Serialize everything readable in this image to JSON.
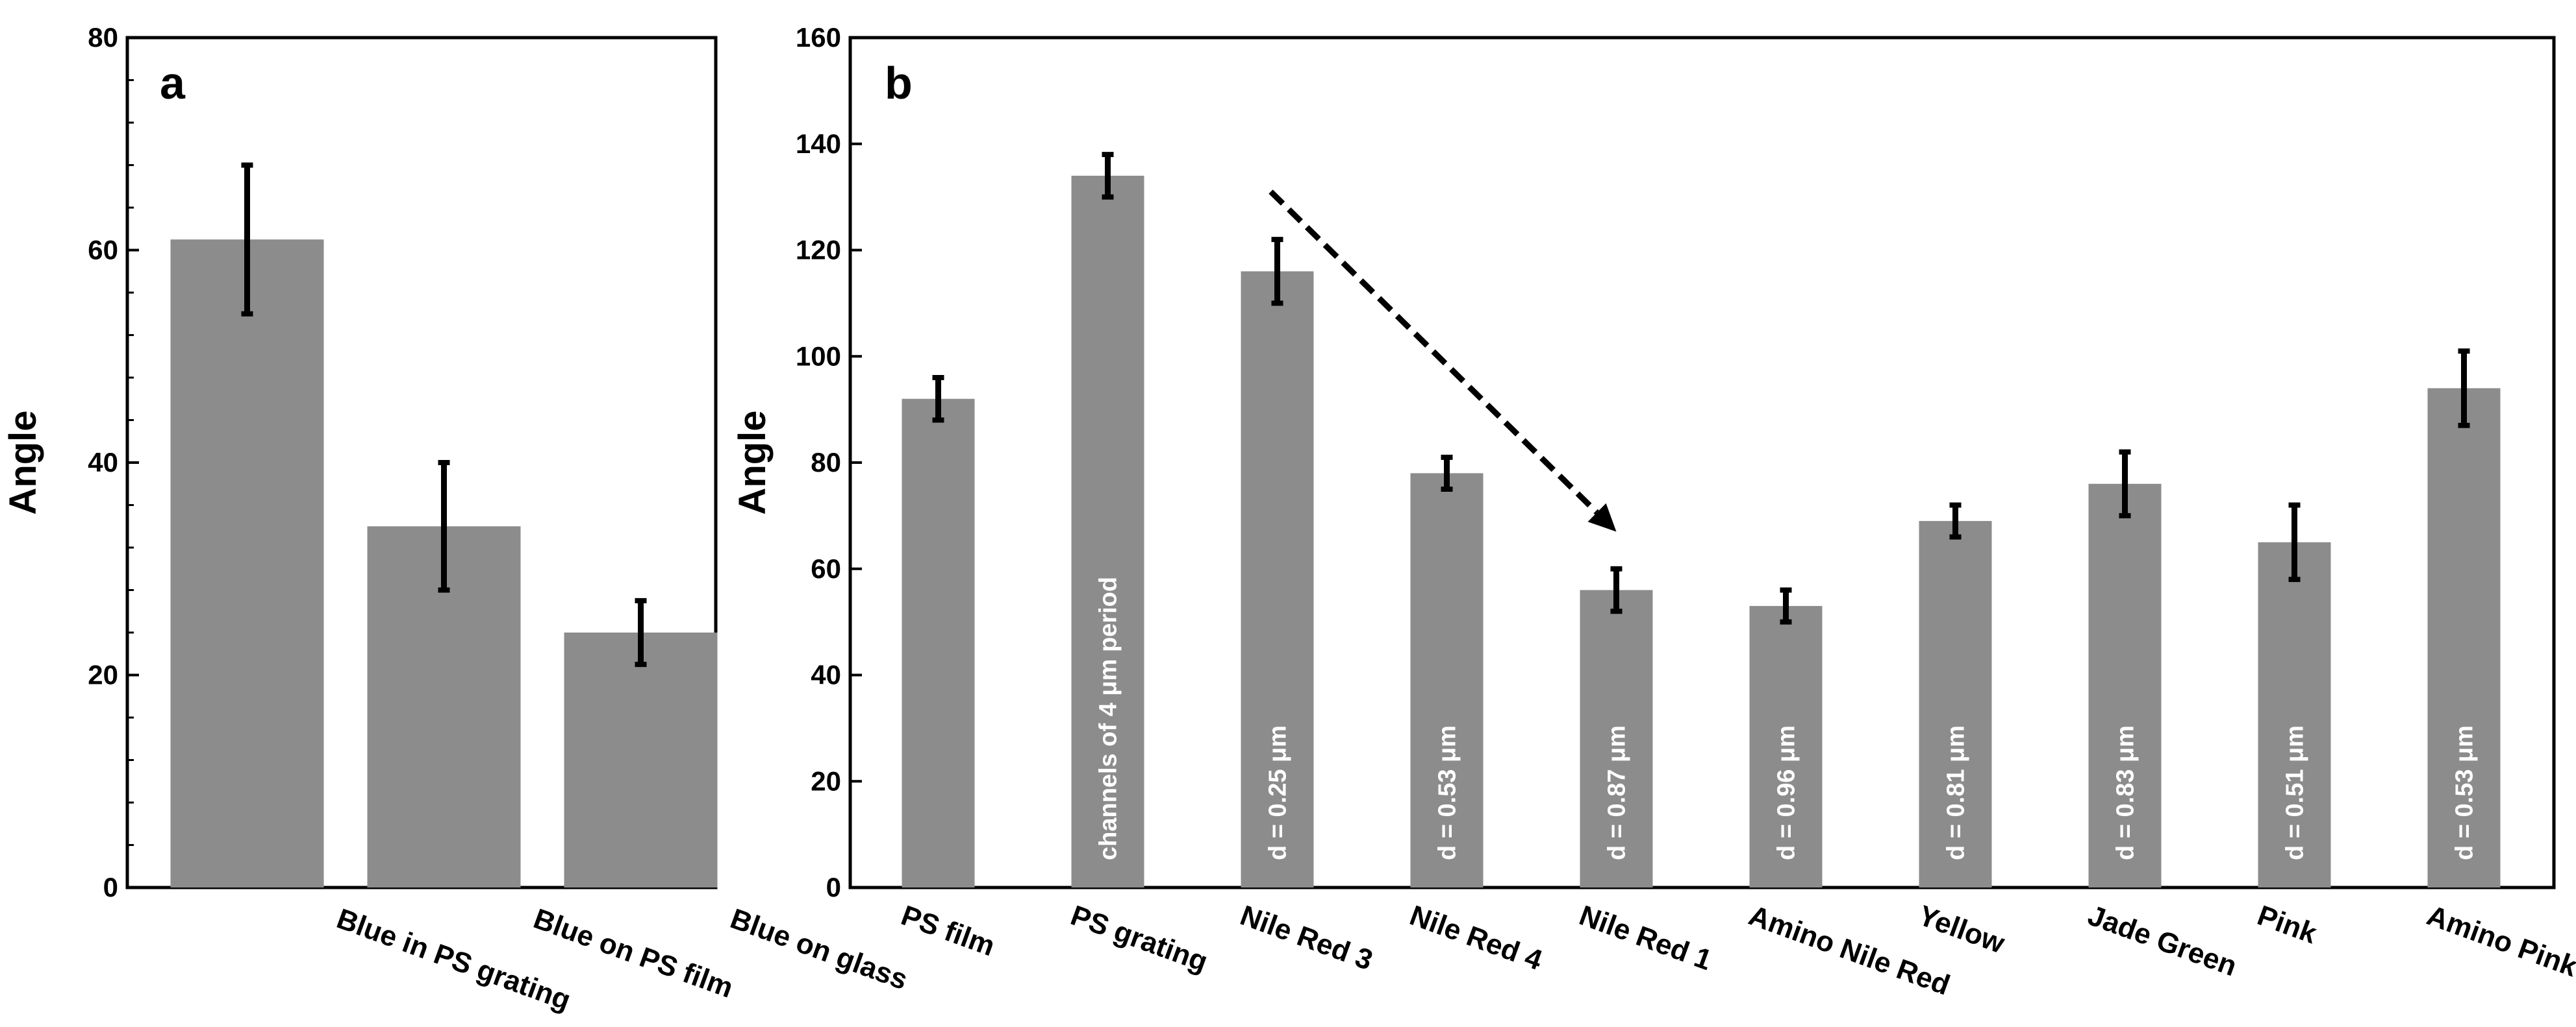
{
  "colors": {
    "bar": "#8c8c8c",
    "error": "#000000",
    "axis": "#000000",
    "bar_label": "#ffffff"
  },
  "chart_data": [
    {
      "panel": "a",
      "type": "bar",
      "title": "",
      "xlabel": "",
      "ylabel": "Angle",
      "ylim": [
        0,
        80
      ],
      "yticks": [
        0,
        20,
        40,
        60,
        80
      ],
      "categories": [
        "Blue in PS grating",
        "Blue on PS film",
        "Blue on glass"
      ],
      "values": [
        61,
        34,
        24
      ],
      "errors": [
        7,
        6,
        3
      ],
      "bar_labels": [
        "",
        "",
        ""
      ]
    },
    {
      "panel": "b",
      "type": "bar",
      "title": "",
      "xlabel": "",
      "ylabel": "Angle",
      "ylim": [
        0,
        160
      ],
      "yticks": [
        0,
        20,
        40,
        60,
        80,
        100,
        120,
        140,
        160
      ],
      "categories": [
        "PS film",
        "PS grating",
        "Nile Red 3",
        "Nile Red 4",
        "Nile Red 1",
        "Amino Nile Red",
        "Yellow",
        "Jade Green",
        "Pink",
        "Amino Pink"
      ],
      "values": [
        92,
        134,
        116,
        78,
        56,
        53,
        69,
        76,
        65,
        94
      ],
      "errors": [
        4,
        4,
        6,
        3,
        4,
        3,
        3,
        6,
        7,
        7
      ],
      "bar_labels": [
        "",
        "channels of 4 μm  period",
        "d = 0.25 μm",
        "d = 0.53 μm",
        "d = 0.87 μm",
        "d = 0.96 μm",
        "d = 0.81 μm",
        "d = 0.83 μm",
        "d = 0.51 μm",
        "d = 0.53 μm"
      ],
      "annotations": [
        "dashed arrow from Nile Red 3 to Nile Red 1"
      ]
    }
  ]
}
